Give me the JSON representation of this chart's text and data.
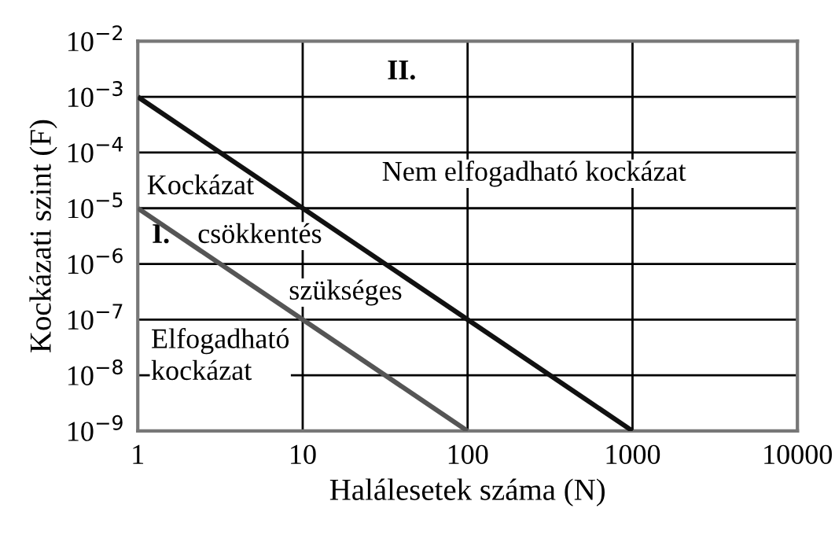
{
  "chart_data": {
    "type": "line",
    "xlabel": "Halálesetek száma (N)",
    "ylabel": "Kockázati szint (F)",
    "series": [
      {
        "color": "#111111",
        "x": [
          1,
          1000
        ],
        "values": [
          0.001,
          1e-09
        ]
      },
      {
        "color": "#555555",
        "x": [
          1,
          100
        ],
        "values": [
          1e-05,
          1e-09
        ]
      }
    ],
    "log": "xy",
    "xlim": [
      1,
      10000
    ],
    "ylim": [
      1e-09,
      0.01
    ],
    "xticks": [
      1,
      10,
      100,
      1000,
      10000
    ],
    "yticks": [
      {
        "value": 1e-09,
        "label": "10$^{−9}$"
      },
      {
        "value": 1e-08,
        "label": "10$^{−8}$"
      },
      {
        "value": 1e-07,
        "label": "10$^{−7}$"
      },
      {
        "value": 1e-06,
        "label": "10$^{−6}$"
      },
      {
        "value": 1e-05,
        "label": "10$^{−5}$"
      },
      {
        "value": 0.0001,
        "label": "10$^{−4}$"
      },
      {
        "value": 0.001,
        "label": "10$^{−3}$"
      },
      {
        "value": 0.01,
        "label": "10$^{−2}$"
      }
    ],
    "grid": true,
    "marker": "none",
    "line_style": "solid",
    "annotations": [
      "II.",
      "Nem elfogadható kockázat",
      "Kockázat",
      "csökkentés",
      "szükséges",
      "I.",
      "Elfogadható\nkockázat"
    ]
  }
}
